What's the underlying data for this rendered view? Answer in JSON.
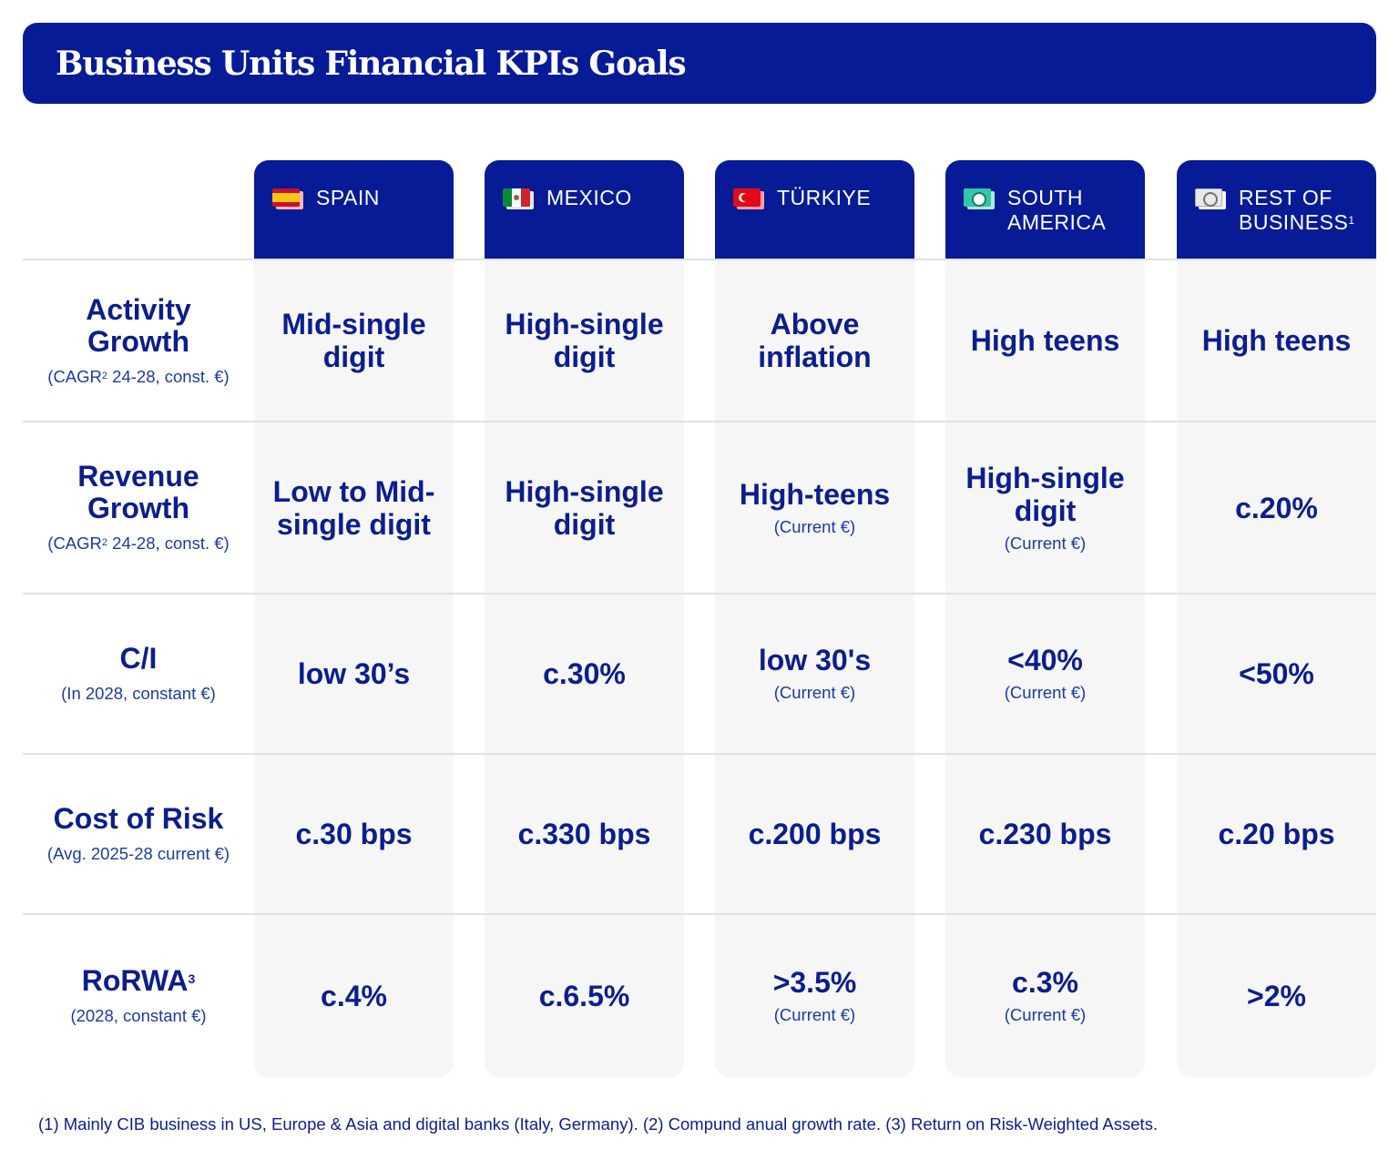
{
  "title": "Business Units Financial KPIs Goals",
  "columns": [
    {
      "label": "SPAIN",
      "sup": "",
      "flag": "flag-spain-icon"
    },
    {
      "label": "MEXICO",
      "sup": "",
      "flag": "flag-mexico-icon"
    },
    {
      "label": "TÜRKIYE",
      "sup": "",
      "flag": "flag-turkiye-icon"
    },
    {
      "label": "SOUTH\nAMERICA",
      "sup": "",
      "flag": "flag-south-america-icon"
    },
    {
      "label": "REST OF\nBUSINESS",
      "sup": "1",
      "flag": "globe-icon"
    }
  ],
  "rows": [
    {
      "label": "Activity\nGrowth",
      "label_sup": "",
      "sub_pre": "(CAGR",
      "sub_sup": "2",
      "sub_post": " 24-28, const. €)",
      "values": [
        {
          "main": "Mid-single\ndigit",
          "sub": ""
        },
        {
          "main": "High-single\ndigit",
          "sub": ""
        },
        {
          "main": "Above\ninflation",
          "sub": ""
        },
        {
          "main": "High teens",
          "sub": ""
        },
        {
          "main": "High teens",
          "sub": ""
        }
      ]
    },
    {
      "label": "Revenue\nGrowth",
      "label_sup": "",
      "sub_pre": "(CAGR",
      "sub_sup": "2",
      "sub_post": " 24-28, const. €)",
      "values": [
        {
          "main": "Low to Mid-\nsingle digit",
          "sub": ""
        },
        {
          "main": "High-single\ndigit",
          "sub": ""
        },
        {
          "main": "High-teens",
          "sub": "(Current €)"
        },
        {
          "main": "High-single\ndigit",
          "sub": "(Current €)"
        },
        {
          "main": "c.20%",
          "sub": ""
        }
      ]
    },
    {
      "label": "C/I",
      "label_sup": "",
      "sub_pre": "(In 2028, constant €)",
      "sub_sup": "",
      "sub_post": "",
      "values": [
        {
          "main": "low 30’s",
          "sub": ""
        },
        {
          "main": "c.30%",
          "sub": ""
        },
        {
          "main": "low 30's",
          "sub": "(Current €)"
        },
        {
          "main": "<40%",
          "sub": "(Current €)"
        },
        {
          "main": "<50%",
          "sub": ""
        }
      ]
    },
    {
      "label": "Cost of Risk",
      "label_sup": "",
      "sub_pre": "(Avg. 2025-28 current €)",
      "sub_sup": "",
      "sub_post": "",
      "values": [
        {
          "main": "c.30 bps",
          "sub": ""
        },
        {
          "main": "c.330 bps",
          "sub": ""
        },
        {
          "main": "c.200 bps",
          "sub": ""
        },
        {
          "main": "c.230 bps",
          "sub": ""
        },
        {
          "main": "c.20 bps",
          "sub": ""
        }
      ]
    },
    {
      "label": "RoRWA",
      "label_sup": "3",
      "sub_pre": "(2028, constant €)",
      "sub_sup": "",
      "sub_post": "",
      "values": [
        {
          "main": "c.4%",
          "sub": ""
        },
        {
          "main": "c.6.5%",
          "sub": ""
        },
        {
          "main": ">3.5%",
          "sub": "(Current €)"
        },
        {
          "main": "c.3%",
          "sub": "(Current €)"
        },
        {
          "main": ">2%",
          "sub": ""
        }
      ]
    }
  ],
  "footnote": "(1) Mainly CIB business in US, Europe & Asia and digital banks (Italy, Germany). (2) Compund anual growth rate. (3) Return on Risk-Weighted Assets.",
  "colors": {
    "navy": "#071b96",
    "text": "#0c1e8c",
    "cell_bg": "#f6f6f6",
    "divider": "#dfe1e8"
  }
}
